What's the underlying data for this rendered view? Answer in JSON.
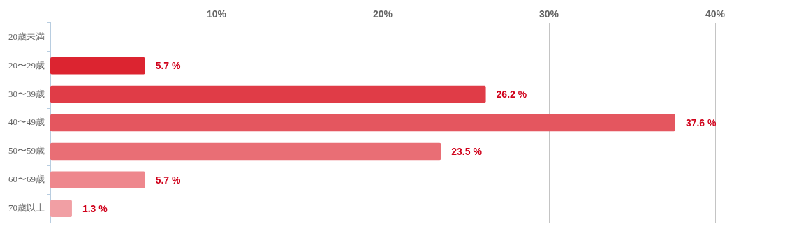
{
  "chart_data": {
    "type": "bar",
    "orientation": "horizontal",
    "categories": [
      "20歳未満",
      "20〜29歳",
      "30〜39歳",
      "40〜49歳",
      "50〜59歳",
      "60〜69歳",
      "70歳以上"
    ],
    "values": [
      null,
      5.7,
      26.2,
      37.6,
      23.5,
      5.7,
      1.3
    ],
    "colors": [
      "#dc2430",
      "#dc2430",
      "#e03c47",
      "#e4565f",
      "#e96e75",
      "#ee878d",
      "#f19fa4"
    ],
    "value_labels": [
      null,
      "5.7 %",
      "26.2 %",
      "37.6 %",
      "23.5 %",
      "5.7 %",
      "1.3 %"
    ],
    "xlim": [
      0,
      40
    ],
    "xticks": [
      {
        "value": 10,
        "label": "10%"
      },
      {
        "value": 20,
        "label": "20%"
      },
      {
        "value": 30,
        "label": "30%"
      },
      {
        "value": 40,
        "label": "40%"
      }
    ],
    "grid": "x",
    "legend": false
  }
}
